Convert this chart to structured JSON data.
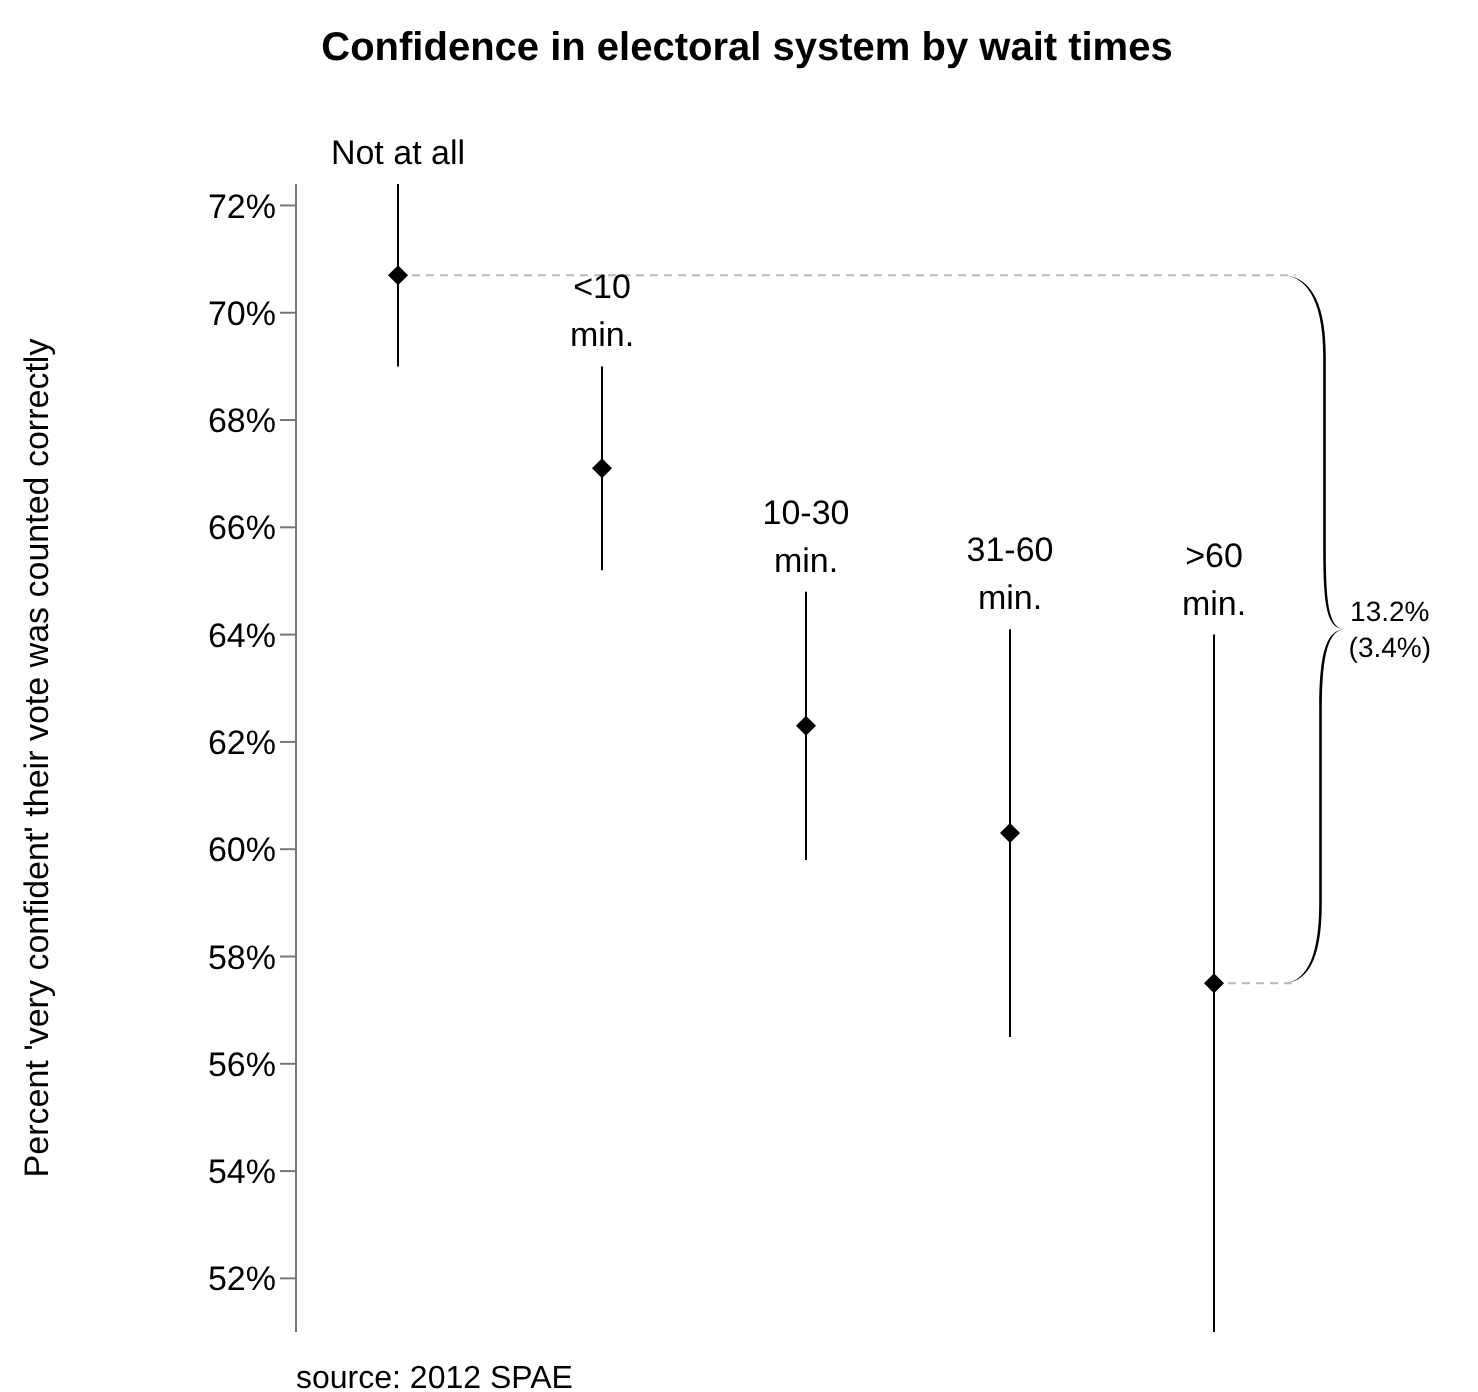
{
  "chart_data": {
    "type": "scatter",
    "title": "Confidence in electoral system by wait times",
    "ylabel": "Percent 'very confident' their vote was counted correctly",
    "categories": [
      "Not at all",
      "<10\nmin.",
      "10-30\nmin.",
      "31-60\nmin.",
      ">60\nmin."
    ],
    "series": [
      {
        "color": "#000000",
        "values": [
          70.7,
          67.1,
          62.3,
          60.3,
          57.5
        ],
        "errors": [
          [
            69.0,
            72.4
          ],
          [
            65.2,
            69.0
          ],
          [
            59.8,
            64.8
          ],
          [
            56.5,
            64.1
          ],
          [
            51.0,
            64.0
          ]
        ]
      }
    ],
    "marker": "diamond",
    "ylim": [
      51,
      72.4
    ],
    "yticks": [
      {
        "value": 52,
        "label": "52%"
      },
      {
        "value": 54,
        "label": "54%"
      },
      {
        "value": 56,
        "label": "56%"
      },
      {
        "value": 58,
        "label": "58%"
      },
      {
        "value": 60,
        "label": "60%"
      },
      {
        "value": 62,
        "label": "62%"
      },
      {
        "value": 64,
        "label": "64%"
      },
      {
        "value": 66,
        "label": "66%"
      },
      {
        "value": 68,
        "label": "68%"
      },
      {
        "value": 70,
        "label": "70%"
      },
      {
        "value": 72,
        "label": "72%"
      }
    ],
    "ref_lines": [
      {
        "axis": "y",
        "value": 70.7,
        "color": "#bbbbbb",
        "line_style": "dashed"
      },
      {
        "axis": "y",
        "value": 57.5,
        "color": "#bbbbbb",
        "line_style": "dashed"
      }
    ],
    "annotations": [
      "13.2%\n(3.4%)",
      "source: 2012 SPAE"
    ],
    "grid": false,
    "legend": false
  }
}
